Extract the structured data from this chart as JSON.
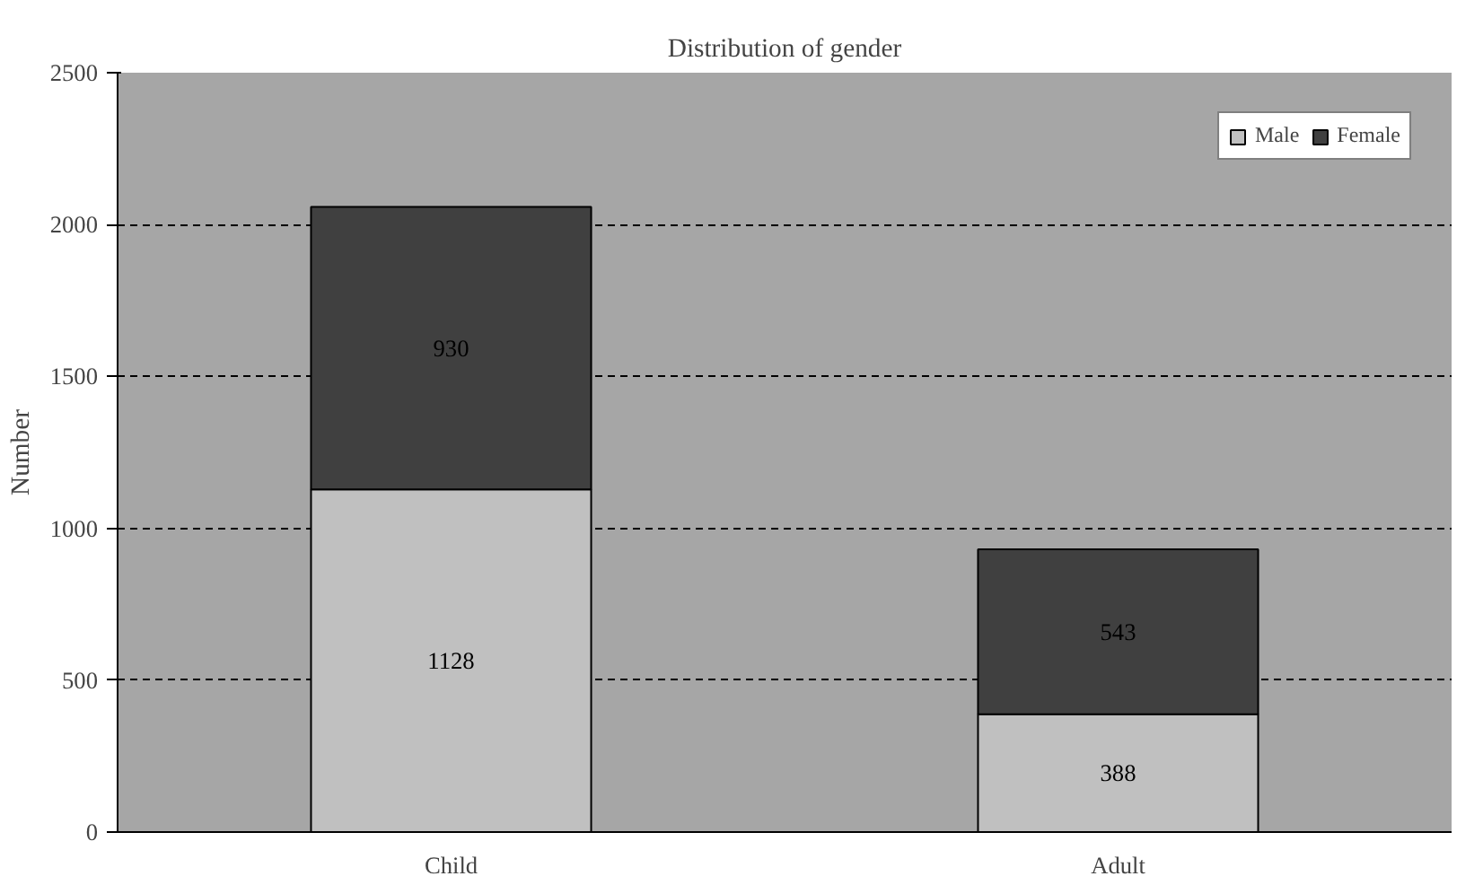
{
  "chart_data": {
    "type": "bar",
    "title": "Distribution of gender",
    "ylabel": "Number",
    "categories": [
      "Child",
      "Adult"
    ],
    "series": [
      {
        "name": "Male",
        "color": "#c0c0c0",
        "values": [
          1128,
          388
        ]
      },
      {
        "name": "Female",
        "color": "#404040",
        "values": [
          930,
          543
        ]
      }
    ],
    "stacked": true,
    "ylim": [
      0,
      2500
    ],
    "yticks": [
      0,
      500,
      1000,
      1500,
      2000,
      2500
    ],
    "grid": "y",
    "legend": "top right",
    "data_labels": true
  }
}
